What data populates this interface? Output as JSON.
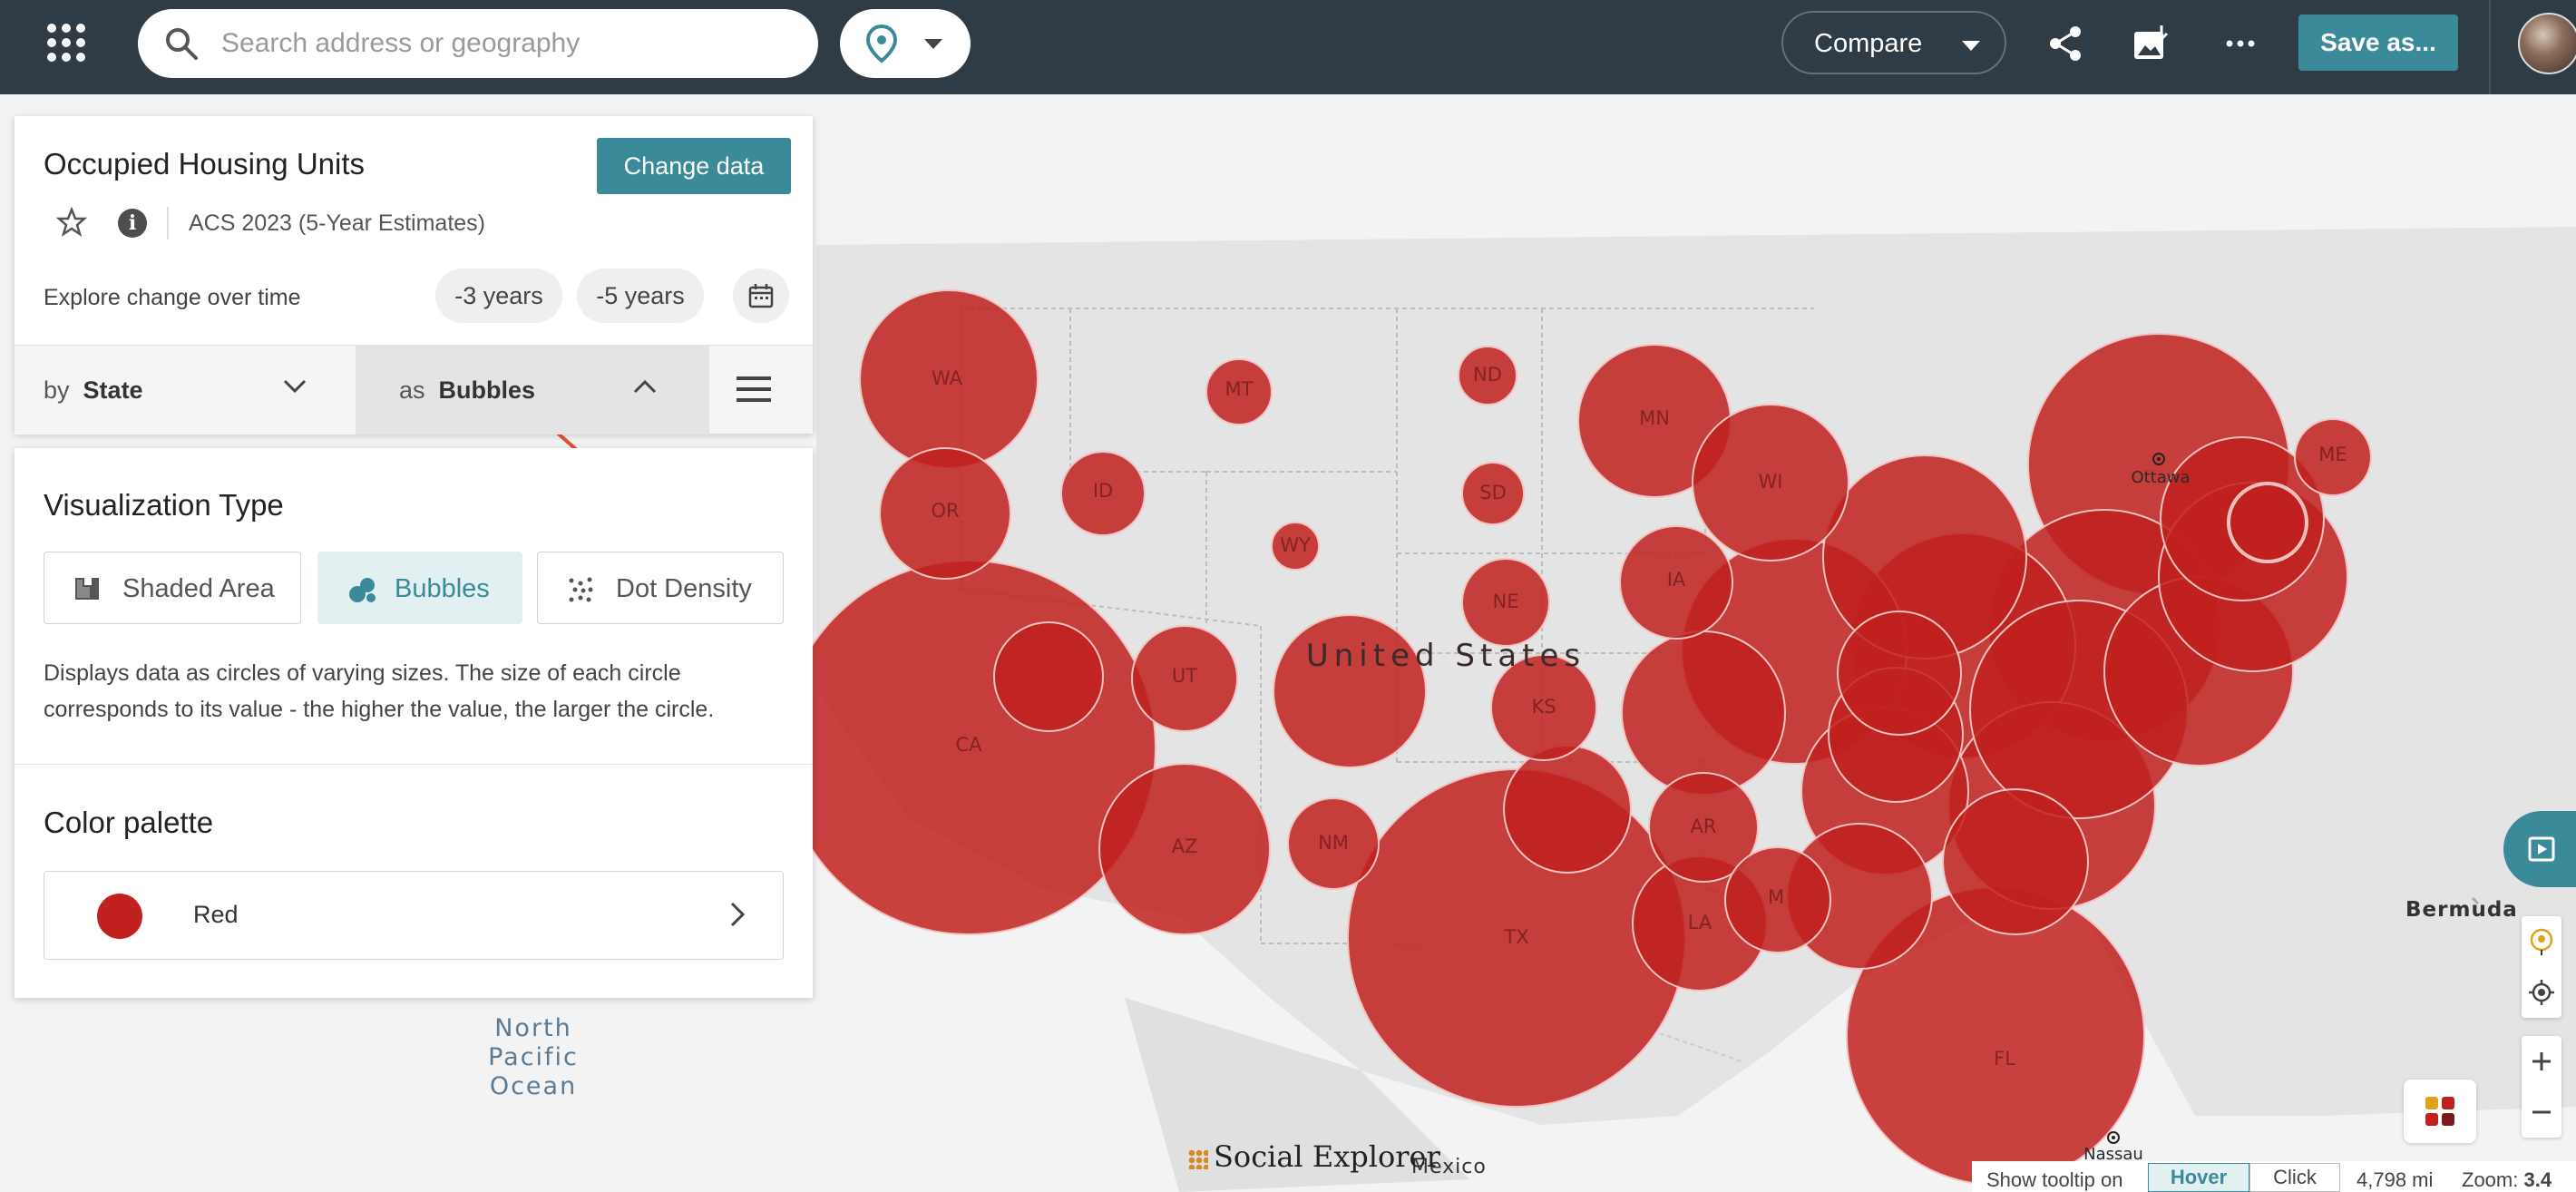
{
  "toolbar": {
    "search_placeholder": "Search address or geography",
    "compare_label": "Compare",
    "save_label": "Save as..."
  },
  "data_panel": {
    "title": "Occupied Housing Units",
    "change_data_label": "Change data",
    "dataset": "ACS 2023 (5-Year Estimates)",
    "explore_label": "Explore change over time",
    "minus3_label": "-3 years",
    "minus5_label": "-5 years",
    "by_prefix": "by",
    "by_value": "State",
    "as_prefix": "as",
    "as_value": "Bubbles"
  },
  "viz_panel": {
    "title": "Visualization Type",
    "options": [
      "Shaded Area",
      "Bubbles",
      "Dot Density"
    ],
    "selected": "Bubbles",
    "description": "Displays data as circles of varying sizes. The size of each circle corresponds to its value - the higher the value, the larger the circle.",
    "palette_title": "Color palette",
    "palette_value": "Red",
    "palette_color": "#c0211f"
  },
  "map": {
    "country_label": "United States",
    "ocean_label_lines": [
      "North",
      "Pacific",
      "Ocean"
    ],
    "bermuda_label": "Bermuda",
    "mexico_label": "Mexico",
    "ottawa_label": "Ottawa",
    "nassau_label": "Nassau",
    "logo_text": "Social Explorer",
    "bubble_color": "#c0211f",
    "state_labels": [
      "WA",
      "OR",
      "CA",
      "ID",
      "MT",
      "WY",
      "UT",
      "AZ",
      "NM",
      "ND",
      "SD",
      "NE",
      "KS",
      "TX",
      "MN",
      "IA",
      "WI",
      "AR",
      "LA",
      "MI",
      "FL",
      "ME"
    ]
  },
  "status": {
    "tooltip_label": "Show tooltip on",
    "hover_label": "Hover",
    "click_label": "Click",
    "distance": "4,798 mi",
    "zoom_label": "Zoom:",
    "zoom_value": "3.4"
  },
  "icons": {
    "apps": "apps-grid-icon",
    "search": "search-icon",
    "location": "location-pin-icon",
    "share": "share-icon",
    "export": "image-export-icon",
    "more": "more-dots-icon",
    "favorite": "star-icon",
    "info": "info-icon",
    "calendar": "calendar-icon"
  },
  "colors": {
    "topbar": "#2f3b45",
    "accent": "#3a8a99",
    "annotation_arrow": "#e8502f"
  }
}
